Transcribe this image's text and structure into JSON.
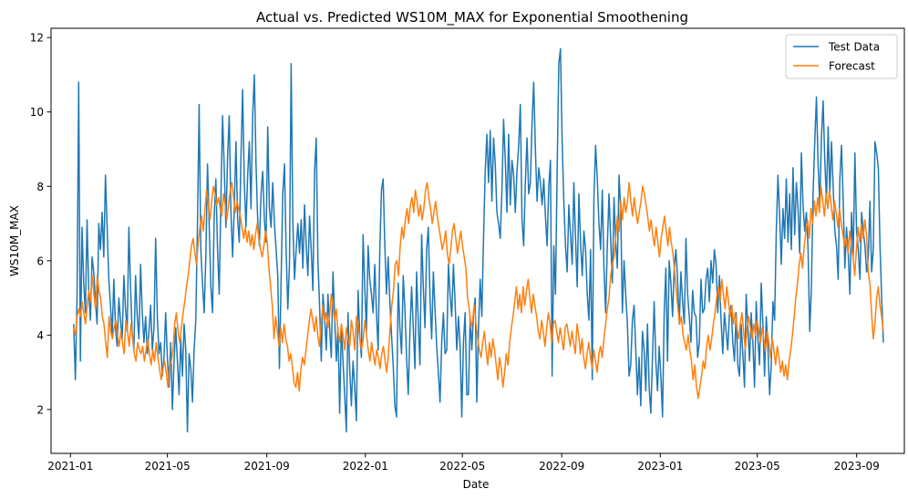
{
  "chart_data": {
    "type": "line",
    "title": "Actual vs. Predicted WS10M_MAX for Exponential Smoothening",
    "xlabel": "Date",
    "ylabel": "WS10M_MAX",
    "x_range": [
      "2020-12-08",
      "2023-10-30"
    ],
    "ylim": [
      0.82,
      12.25
    ],
    "x_ticks": [
      {
        "date": "2021-01-01",
        "label": "2021-01"
      },
      {
        "date": "2021-05-01",
        "label": "2021-05"
      },
      {
        "date": "2021-09-01",
        "label": "2021-09"
      },
      {
        "date": "2022-01-01",
        "label": "2022-01"
      },
      {
        "date": "2022-05-01",
        "label": "2022-05"
      },
      {
        "date": "2022-09-01",
        "label": "2022-09"
      },
      {
        "date": "2023-01-01",
        "label": "2023-01"
      },
      {
        "date": "2023-05-01",
        "label": "2023-05"
      },
      {
        "date": "2023-09-01",
        "label": "2023-09"
      }
    ],
    "y_ticks": [
      {
        "value": 2,
        "label": "2"
      },
      {
        "value": 4,
        "label": "4"
      },
      {
        "value": 6,
        "label": "6"
      },
      {
        "value": 8,
        "label": "8"
      },
      {
        "value": 10,
        "label": "10"
      },
      {
        "value": 12,
        "label": "12"
      }
    ],
    "grid": false,
    "legend_position": "top-right",
    "series": [
      {
        "name": "Test Data",
        "color": "#1f77b4",
        "start_date": "2021-01-05",
        "end_date": "2023-10-04",
        "values": [
          4.3,
          2.8,
          5.0,
          10.8,
          3.3,
          6.9,
          5.4,
          4.6,
          7.1,
          5.2,
          4.4,
          6.1,
          5.7,
          4.9,
          4.3,
          7.0,
          6.3,
          7.3,
          6.1,
          8.3,
          6.9,
          5.5,
          4.8,
          4.0,
          5.5,
          4.2,
          3.7,
          5.0,
          4.4,
          3.9,
          5.6,
          4.7,
          4.1,
          6.9,
          5.3,
          4.0,
          3.6,
          5.6,
          4.5,
          3.9,
          5.9,
          4.6,
          3.8,
          4.5,
          3.5,
          4.1,
          4.8,
          3.6,
          4.2,
          6.6,
          4.5,
          3.5,
          3.8,
          2.9,
          3.4,
          4.6,
          3.4,
          2.6,
          3.8,
          2.0,
          3.3,
          4.2,
          3.3,
          2.4,
          3.9,
          2.9,
          4.3,
          3.6,
          1.4,
          3.5,
          3.1,
          2.2,
          3.6,
          4.4,
          7.0,
          10.2,
          6.3,
          5.4,
          4.6,
          6.1,
          8.6,
          7.0,
          5.3,
          4.6,
          7.2,
          8.2,
          6.3,
          5.1,
          7.7,
          9.9,
          8.5,
          6.9,
          8.8,
          9.9,
          7.3,
          6.1,
          7.4,
          9.2,
          7.1,
          6.5,
          8.8,
          10.6,
          8.1,
          6.9,
          8.3,
          9.2,
          7.4,
          9.9,
          11.0,
          8.6,
          7.1,
          6.4,
          7.8,
          8.4,
          7.1,
          6.5,
          9.6,
          7.4,
          6.9,
          8.1,
          7.0,
          6.3,
          5.6,
          3.1,
          5.5,
          7.8,
          8.6,
          6.3,
          4.7,
          5.9,
          11.3,
          7.1,
          5.5,
          6.3,
          7.0,
          6.2,
          7.1,
          5.8,
          7.5,
          6.4,
          5.6,
          7.2,
          6.3,
          5.2,
          8.4,
          9.3,
          6.0,
          4.8,
          3.3,
          5.1,
          4.5,
          3.6,
          5.1,
          4.2,
          3.4,
          5.7,
          4.5,
          3.3,
          4.2,
          1.9,
          4.2,
          3.3,
          2.4,
          1.4,
          4.6,
          3.1,
          2.1,
          3.3,
          2.6,
          1.7,
          5.2,
          4.0,
          3.4,
          6.7,
          5.3,
          4.1,
          6.4,
          5.5,
          5.1,
          4.6,
          5.9,
          4.6,
          3.6,
          6.3,
          7.9,
          8.2,
          6.4,
          5.1,
          6.1,
          4.9,
          4.0,
          3.2,
          2.1,
          1.8,
          5.4,
          4.2,
          3.5,
          5.6,
          4.7,
          3.4,
          2.4,
          4.1,
          5.3,
          4.2,
          3.1,
          5.7,
          4.3,
          3.2,
          6.7,
          5.3,
          4.2,
          6.3,
          6.9,
          5.0,
          3.9,
          5.7,
          4.7,
          3.7,
          3.0,
          2.2,
          3.8,
          4.6,
          3.5,
          3.6,
          5.9,
          5.1,
          4.5,
          5.9,
          4.9,
          3.6,
          4.5,
          3.7,
          1.8,
          3.8,
          4.6,
          2.4,
          2.4,
          4.5,
          3.6,
          4.6,
          5.0,
          2.2,
          4.2,
          5.5,
          4.5,
          6.6,
          8.4,
          9.4,
          8.1,
          9.5,
          7.6,
          9.3,
          8.6,
          7.3,
          7.0,
          6.6,
          7.9,
          9.8,
          8.7,
          7.3,
          9.4,
          7.5,
          8.7,
          8.3,
          7.3,
          8.4,
          9.1,
          10.2,
          7.1,
          6.4,
          8.1,
          9.3,
          7.8,
          8.1,
          9.7,
          10.8,
          9.0,
          7.6,
          8.5,
          8.1,
          7.5,
          8.2,
          7.2,
          6.4,
          8.0,
          8.7,
          2.9,
          6.4,
          5.1,
          8.4,
          11.3,
          11.7,
          9.2,
          7.6,
          6.4,
          5.7,
          7.5,
          6.7,
          5.9,
          8.1,
          6.6,
          5.3,
          7.8,
          6.5,
          5.6,
          6.8,
          6.3,
          5.1,
          4.4,
          6.3,
          2.8,
          7.7,
          9.1,
          8.2,
          7.0,
          6.3,
          7.9,
          5.8,
          4.6,
          6.4,
          7.8,
          6.6,
          5.4,
          7.7,
          6.5,
          5.8,
          8.3,
          7.4,
          4.6,
          6.0,
          5.1,
          4.3,
          2.9,
          3.2,
          4.4,
          4.8,
          3.6,
          2.4,
          3.4,
          2.1,
          4.1,
          3.6,
          2.5,
          4.3,
          2.6,
          1.9,
          3.4,
          4.9,
          3.3,
          2.5,
          3.7,
          2.9,
          1.8,
          4.6,
          5.8,
          3.3,
          6.0,
          5.4,
          4.5,
          5.8,
          6.3,
          5.5,
          4.3,
          5.7,
          4.9,
          4.3,
          6.6,
          5.1,
          4.5,
          3.8,
          5.2,
          4.6,
          4.5,
          3.4,
          3.8,
          5.5,
          4.6,
          4.7,
          5.5,
          5.8,
          4.9,
          6.0,
          5.4,
          6.3,
          5.9,
          4.6,
          5.6,
          4.4,
          3.5,
          4.6,
          4.1,
          3.6,
          4.6,
          4.8,
          3.8,
          3.3,
          4.6,
          3.2,
          2.9,
          4.3,
          3.5,
          2.6,
          5.1,
          4.2,
          3.3,
          4.6,
          3.8,
          2.6,
          4.9,
          3.9,
          3.2,
          5.4,
          4.3,
          2.9,
          4.5,
          3.7,
          2.4,
          3.2,
          4.9,
          4.4,
          6.8,
          8.3,
          7.2,
          5.9,
          7.4,
          6.6,
          8.2,
          6.5,
          7.8,
          6.3,
          8.5,
          6.7,
          8.1,
          7.4,
          6.2,
          8.9,
          7.5,
          6.8,
          7.3,
          6.3,
          4.1,
          5.3,
          7.8,
          9.2,
          10.4,
          8.6,
          7.5,
          9.3,
          10.3,
          8.7,
          7.6,
          9.6,
          7.8,
          9.2,
          8.0,
          6.8,
          6.4,
          5.5,
          8.2,
          9.1,
          7.6,
          5.8,
          6.9,
          6.2,
          5.1,
          7.3,
          6.1,
          8.9,
          6.8,
          6.3,
          5.5,
          7.3,
          6.8,
          6.4,
          5.7,
          6.1,
          7.6,
          5.7,
          6.3,
          9.2,
          8.9,
          8.5,
          6.4,
          5.0,
          3.8
        ]
      },
      {
        "name": "Forecast",
        "color": "#ff7f0e",
        "start_date": "2021-01-05",
        "end_date": "2023-10-04",
        "values": [
          4.2,
          4.0,
          4.5,
          4.7,
          4.5,
          4.9,
          4.6,
          4.3,
          4.8,
          5.2,
          4.9,
          5.6,
          5.1,
          4.7,
          5.6,
          5.2,
          5.0,
          4.5,
          4.3,
          3.8,
          3.4,
          4.5,
          4.1,
          3.9,
          4.2,
          4.4,
          4.0,
          3.7,
          4.1,
          3.8,
          3.5,
          4.4,
          4.1,
          3.7,
          4.3,
          4.0,
          3.5,
          3.3,
          3.8,
          3.6,
          3.5,
          3.7,
          3.3,
          3.6,
          3.9,
          3.5,
          3.2,
          3.6,
          3.3,
          3.8,
          3.4,
          3.1,
          2.8,
          3.1,
          3.3,
          3.0,
          2.6,
          3.2,
          3.3,
          3.6,
          4.3,
          4.6,
          4.1,
          3.8,
          4.2,
          4.6,
          4.9,
          5.3,
          5.6,
          6.0,
          6.4,
          6.6,
          6.2,
          5.9,
          6.5,
          6.9,
          7.2,
          6.8,
          7.4,
          7.9,
          7.5,
          7.1,
          7.6,
          8.0,
          7.8,
          7.5,
          7.7,
          7.4,
          7.2,
          7.8,
          7.5,
          7.1,
          7.5,
          7.9,
          8.1,
          7.7,
          7.3,
          7.6,
          7.4,
          7.2,
          6.9,
          6.6,
          6.9,
          6.5,
          6.8,
          6.4,
          6.7,
          6.3,
          6.7,
          7.0,
          6.6,
          6.3,
          6.1,
          6.4,
          6.8,
          6.5,
          5.8,
          5.3,
          4.8,
          3.9,
          4.5,
          4.1,
          3.7,
          4.2,
          3.8,
          4.3,
          3.9,
          3.7,
          3.3,
          3.5,
          3.1,
          2.7,
          2.6,
          3.0,
          2.5,
          3.1,
          3.4,
          3.2,
          3.6,
          4.0,
          4.4,
          4.7,
          4.4,
          4.1,
          4.5,
          4.0,
          3.7,
          4.3,
          4.8,
          4.4,
          4.6,
          4.2,
          4.5,
          5.1,
          4.8,
          4.4,
          4.7,
          4.1,
          3.8,
          4.3,
          4.0,
          3.6,
          4.2,
          3.9,
          3.7,
          4.4,
          4.1,
          3.6,
          4.5,
          4.3,
          3.9,
          3.6,
          3.9,
          4.4,
          4.0,
          3.6,
          3.3,
          3.8,
          3.5,
          3.2,
          3.6,
          3.4,
          3.1,
          3.5,
          3.7,
          3.3,
          3.0,
          3.5,
          4.2,
          4.8,
          5.2,
          5.9,
          6.0,
          5.6,
          6.4,
          6.9,
          6.6,
          7.1,
          7.4,
          7.0,
          7.5,
          7.7,
          7.3,
          7.9,
          7.6,
          7.2,
          7.5,
          7.1,
          7.4,
          7.9,
          8.1,
          7.7,
          7.4,
          7.0,
          7.3,
          7.6,
          7.2,
          6.9,
          6.6,
          6.3,
          6.5,
          6.8,
          6.2,
          5.9,
          6.3,
          6.8,
          7.0,
          6.6,
          6.2,
          6.5,
          6.8,
          6.4,
          6.1,
          5.8,
          5.0,
          4.7,
          4.2,
          4.4,
          4.8,
          4.3,
          3.9,
          3.6,
          3.4,
          3.8,
          4.1,
          3.6,
          3.2,
          3.8,
          3.4,
          3.9,
          3.6,
          3.2,
          2.8,
          3.4,
          3.1,
          2.6,
          3.0,
          3.5,
          3.2,
          3.8,
          4.2,
          4.5,
          4.9,
          5.3,
          4.7,
          5.1,
          4.6,
          5.3,
          4.8,
          5.2,
          5.5,
          5.0,
          4.6,
          5.1,
          4.8,
          4.5,
          4.1,
          3.9,
          4.4,
          4.1,
          3.7,
          4.2,
          4.6,
          4.3,
          3.8,
          4.3,
          4.4,
          4.1,
          3.8,
          4.2,
          3.9,
          3.6,
          4.2,
          4.3,
          4.0,
          3.7,
          4.1,
          3.8,
          3.5,
          4.3,
          4.0,
          3.5,
          3.9,
          3.4,
          3.1,
          3.5,
          3.8,
          3.4,
          3.1,
          3.6,
          3.3,
          3.0,
          3.5,
          3.7,
          3.4,
          3.9,
          4.3,
          4.7,
          5.0,
          5.6,
          5.9,
          6.1,
          6.6,
          7.2,
          6.8,
          7.6,
          7.1,
          7.7,
          7.3,
          7.6,
          8.1,
          7.6,
          7.2,
          7.7,
          7.3,
          7.0,
          7.3,
          7.6,
          8.0,
          7.8,
          7.5,
          7.2,
          6.8,
          7.1,
          6.7,
          6.4,
          6.9,
          6.5,
          6.1,
          6.6,
          6.9,
          7.2,
          6.8,
          6.4,
          6.9,
          6.5,
          6.2,
          5.7,
          5.2,
          4.7,
          4.3,
          4.5,
          4.0,
          3.8,
          3.6,
          4.0,
          3.6,
          3.3,
          2.8,
          3.2,
          2.6,
          2.3,
          2.6,
          2.9,
          3.3,
          3.1,
          3.7,
          4.0,
          3.6,
          3.9,
          4.3,
          4.6,
          5.0,
          5.3,
          4.9,
          5.5,
          5.1,
          4.7,
          5.3,
          4.9,
          4.5,
          4.8,
          4.3,
          4.6,
          4.2,
          3.9,
          4.3,
          4.6,
          4.1,
          3.6,
          4.2,
          4.5,
          4.2,
          3.9,
          4.3,
          4.0,
          4.4,
          4.1,
          3.8,
          4.2,
          3.9,
          3.6,
          4.1,
          3.8,
          3.4,
          3.9,
          3.6,
          3.2,
          3.7,
          3.4,
          3.0,
          3.3,
          2.9,
          3.2,
          2.8,
          3.3,
          3.6,
          4.0,
          4.5,
          5.0,
          5.4,
          5.9,
          6.2,
          5.8,
          6.4,
          6.8,
          7.1,
          6.6,
          7.4,
          7.0,
          7.6,
          7.2,
          7.7,
          7.3,
          8.0,
          7.6,
          7.2,
          7.8,
          7.4,
          7.9,
          7.5,
          7.1,
          7.6,
          7.3,
          6.9,
          7.4,
          7.0,
          6.7,
          6.4,
          6.6,
          6.2,
          6.8,
          6.4,
          6.1,
          5.6,
          6.3,
          6.9,
          6.5,
          7.0,
          6.6,
          7.1,
          6.7,
          5.7,
          5.4,
          4.6,
          3.9,
          4.3,
          5.0,
          5.3,
          4.8,
          4.5,
          4.1
        ]
      }
    ]
  }
}
